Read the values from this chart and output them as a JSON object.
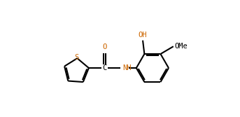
{
  "bg_color": "#ffffff",
  "line_color": "#000000",
  "orange": "#cc6600",
  "lw": 1.5,
  "fig_width": 3.43,
  "fig_height": 1.67,
  "dpi": 100,
  "xlim": [
    0,
    343
  ],
  "ylim": [
    0,
    167
  ]
}
